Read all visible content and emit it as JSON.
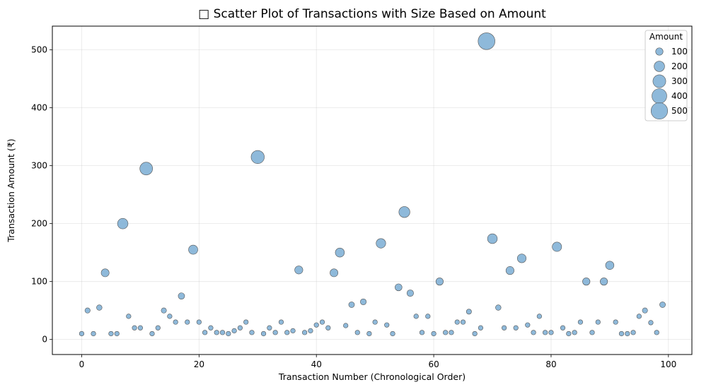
{
  "chart_data": {
    "type": "scatter",
    "title": "□ Scatter Plot of Transactions with Size Based on Amount",
    "xlabel": "Transaction Number (Chronological Order)",
    "ylabel": "Transaction Amount (₹)",
    "xlim": [
      -5,
      104
    ],
    "ylim": [
      -26,
      541
    ],
    "xticks": [
      0,
      20,
      40,
      60,
      80,
      100
    ],
    "yticks": [
      0,
      100,
      200,
      300,
      400,
      500
    ],
    "grid": true,
    "marker_color": "#7aadd4",
    "marker_edge_color": "#555555",
    "legend": {
      "title": "Amount",
      "placement": "top-right",
      "entries": [
        "100",
        "200",
        "300",
        "400",
        "500"
      ],
      "size_values": [
        100,
        200,
        300,
        400,
        500
      ]
    },
    "x": [
      0,
      1,
      2,
      3,
      4,
      5,
      6,
      7,
      8,
      9,
      10,
      11,
      12,
      13,
      14,
      15,
      16,
      17,
      18,
      19,
      20,
      21,
      22,
      23,
      24,
      25,
      26,
      27,
      28,
      29,
      30,
      31,
      32,
      33,
      34,
      35,
      36,
      37,
      38,
      39,
      40,
      41,
      42,
      43,
      44,
      45,
      46,
      47,
      48,
      49,
      50,
      51,
      52,
      53,
      54,
      55,
      56,
      57,
      58,
      59,
      60,
      61,
      62,
      63,
      64,
      65,
      66,
      67,
      68,
      69,
      70,
      71,
      72,
      73,
      74,
      75,
      76,
      77,
      78,
      79,
      80,
      81,
      82,
      83,
      84,
      85,
      86,
      87,
      88,
      89,
      90,
      91,
      92,
      93,
      94,
      95,
      96,
      97,
      98,
      99
    ],
    "y": [
      10,
      50,
      10,
      55,
      115,
      10,
      10,
      200,
      40,
      20,
      20,
      295,
      10,
      20,
      50,
      40,
      30,
      75,
      30,
      155,
      30,
      12,
      20,
      12,
      12,
      10,
      15,
      20,
      30,
      12,
      315,
      10,
      20,
      12,
      30,
      12,
      15,
      120,
      12,
      15,
      25,
      30,
      20,
      115,
      150,
      24,
      60,
      12,
      65,
      10,
      30,
      166,
      25,
      10,
      90,
      220,
      80,
      40,
      12,
      40,
      10,
      100,
      12,
      12,
      30,
      30,
      48,
      10,
      20,
      515,
      174,
      55,
      20,
      119,
      20,
      140,
      25,
      12,
      40,
      12,
      12,
      160,
      20,
      10,
      12,
      30,
      100,
      12,
      30,
      100,
      128,
      30,
      10,
      10,
      12,
      40,
      50,
      29,
      12,
      60
    ]
  }
}
